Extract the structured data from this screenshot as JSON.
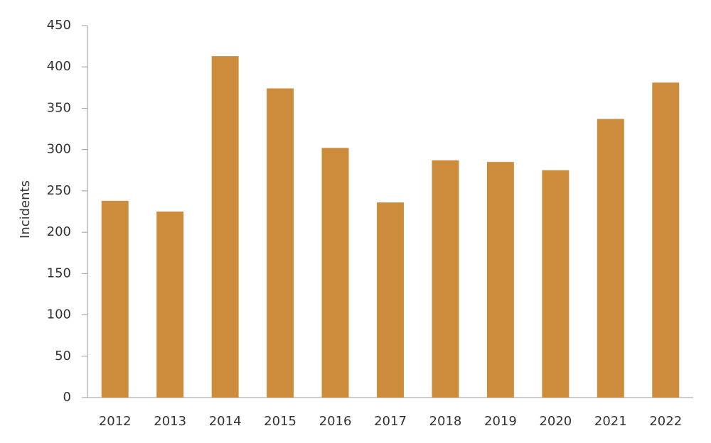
{
  "chart_data": {
    "type": "bar",
    "y_label": "Incidents",
    "categories": [
      "2012",
      "2013",
      "2014",
      "2015",
      "2016",
      "2017",
      "2018",
      "2019",
      "2020",
      "2021",
      "2022"
    ],
    "values": [
      238,
      225,
      413,
      374,
      302,
      236,
      287,
      285,
      275,
      337,
      381
    ],
    "color": "#cc8c3c",
    "ylim": [
      0,
      450
    ],
    "yticks": [
      0,
      50,
      100,
      150,
      200,
      250,
      300,
      350,
      400,
      450
    ],
    "grid": false
  }
}
